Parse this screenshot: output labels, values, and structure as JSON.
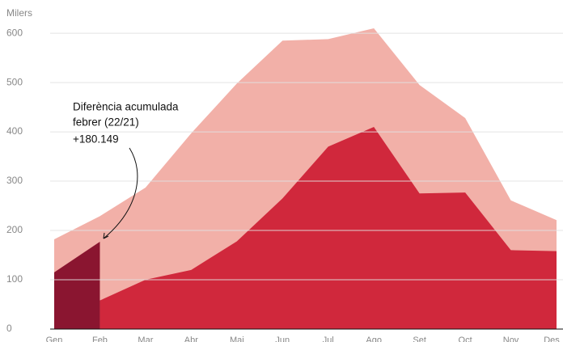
{
  "chart_data": {
    "type": "area",
    "y_axis_label": "Milers",
    "categories": [
      "Gen",
      "Feb",
      "Mar",
      "Abr",
      "Mai",
      "Jun",
      "Jul",
      "Ago",
      "Set",
      "Oct",
      "Nov",
      "Des"
    ],
    "series": [
      {
        "color": "#f2b0a8",
        "values": [
          182,
          229,
          287,
          397,
          498,
          585,
          588,
          610,
          495,
          428,
          261,
          221
        ]
      },
      {
        "color": "#d0283c",
        "values": [
          null,
          58,
          100,
          120,
          178,
          265,
          370,
          410,
          275,
          277,
          160,
          158
        ]
      },
      {
        "color": "#8a1530",
        "values": [
          115,
          177,
          null,
          null,
          null,
          null,
          null,
          null,
          null,
          null,
          null,
          null
        ]
      }
    ],
    "ylim": [
      0,
      610
    ],
    "yticks": [
      0,
      100,
      200,
      300,
      400,
      500,
      600
    ],
    "grid": true,
    "annotation": {
      "lines": [
        "Diferència acumulada",
        "febrer (22/21)"
      ],
      "value": "+180.149"
    }
  }
}
